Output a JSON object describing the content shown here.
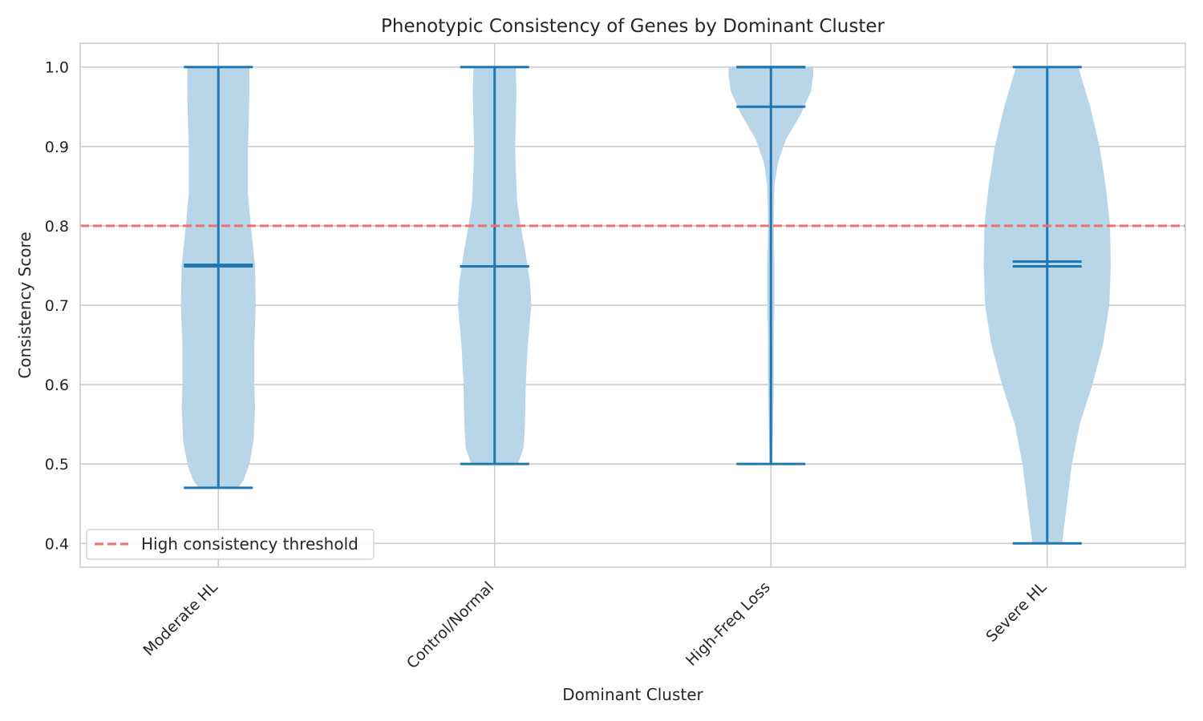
{
  "chart_data": {
    "type": "violin",
    "title": "Phenotypic Consistency of Genes by Dominant Cluster",
    "xlabel": "Dominant Cluster",
    "ylabel": "Consistency Score",
    "ylim": [
      0.37,
      1.03
    ],
    "yticks": [
      "0.4",
      "0.5",
      "0.6",
      "0.7",
      "0.8",
      "0.9",
      "1.0"
    ],
    "ytick_values": [
      0.4,
      0.5,
      0.6,
      0.7,
      0.8,
      0.9,
      1.0
    ],
    "categories": [
      "Moderate HL",
      "Control/Normal",
      "High-Freq Loss",
      "Severe HL"
    ],
    "grid": true,
    "legend": {
      "placement": "lower-left",
      "label": "High consistency threshold"
    },
    "threshold": {
      "value": 0.8,
      "style": "dashed",
      "color": "#f07070"
    },
    "colors": {
      "violin_fill": "#b9d5e8",
      "line": "#1f77b4"
    },
    "violins": [
      {
        "name": "Moderate HL",
        "min": 0.47,
        "max": 1.0,
        "mean": 0.751,
        "median": 0.749,
        "profile": [
          [
            0.47,
            0.28
          ],
          [
            0.48,
            0.36
          ],
          [
            0.5,
            0.44
          ],
          [
            0.53,
            0.5
          ],
          [
            0.57,
            0.52
          ],
          [
            0.6,
            0.51
          ],
          [
            0.65,
            0.51
          ],
          [
            0.7,
            0.53
          ],
          [
            0.75,
            0.52
          ],
          [
            0.8,
            0.46
          ],
          [
            0.84,
            0.42
          ],
          [
            0.87,
            0.42
          ],
          [
            0.9,
            0.42
          ],
          [
            0.93,
            0.43
          ],
          [
            0.97,
            0.44
          ],
          [
            1.0,
            0.44
          ]
        ]
      },
      {
        "name": "Control/Normal",
        "min": 0.5,
        "max": 1.0,
        "mean": 0.749,
        "median": 0.749,
        "profile": [
          [
            0.5,
            0.33
          ],
          [
            0.52,
            0.41
          ],
          [
            0.55,
            0.43
          ],
          [
            0.6,
            0.44
          ],
          [
            0.65,
            0.47
          ],
          [
            0.7,
            0.52
          ],
          [
            0.73,
            0.5
          ],
          [
            0.77,
            0.43
          ],
          [
            0.8,
            0.37
          ],
          [
            0.83,
            0.32
          ],
          [
            0.87,
            0.3
          ],
          [
            0.9,
            0.29
          ],
          [
            0.93,
            0.3
          ],
          [
            0.97,
            0.31
          ],
          [
            1.0,
            0.3
          ]
        ]
      },
      {
        "name": "High-Freq Loss",
        "min": 0.5,
        "max": 1.0,
        "mean": 0.95,
        "median": 1.0,
        "profile": [
          [
            0.5,
            0.02
          ],
          [
            0.55,
            0.03
          ],
          [
            0.6,
            0.04
          ],
          [
            0.65,
            0.04
          ],
          [
            0.7,
            0.05
          ],
          [
            0.75,
            0.05
          ],
          [
            0.8,
            0.04
          ],
          [
            0.85,
            0.05
          ],
          [
            0.88,
            0.1
          ],
          [
            0.91,
            0.22
          ],
          [
            0.94,
            0.42
          ],
          [
            0.97,
            0.57
          ],
          [
            0.99,
            0.6
          ],
          [
            1.0,
            0.6
          ]
        ]
      },
      {
        "name": "Severe HL",
        "min": 0.4,
        "max": 1.0,
        "mean": 0.755,
        "median": 0.749,
        "profile": [
          [
            0.4,
            0.21
          ],
          [
            0.45,
            0.28
          ],
          [
            0.5,
            0.35
          ],
          [
            0.55,
            0.46
          ],
          [
            0.6,
            0.64
          ],
          [
            0.65,
            0.79
          ],
          [
            0.7,
            0.88
          ],
          [
            0.75,
            0.9
          ],
          [
            0.8,
            0.89
          ],
          [
            0.85,
            0.83
          ],
          [
            0.9,
            0.74
          ],
          [
            0.95,
            0.61
          ],
          [
            1.0,
            0.44
          ]
        ]
      }
    ]
  }
}
